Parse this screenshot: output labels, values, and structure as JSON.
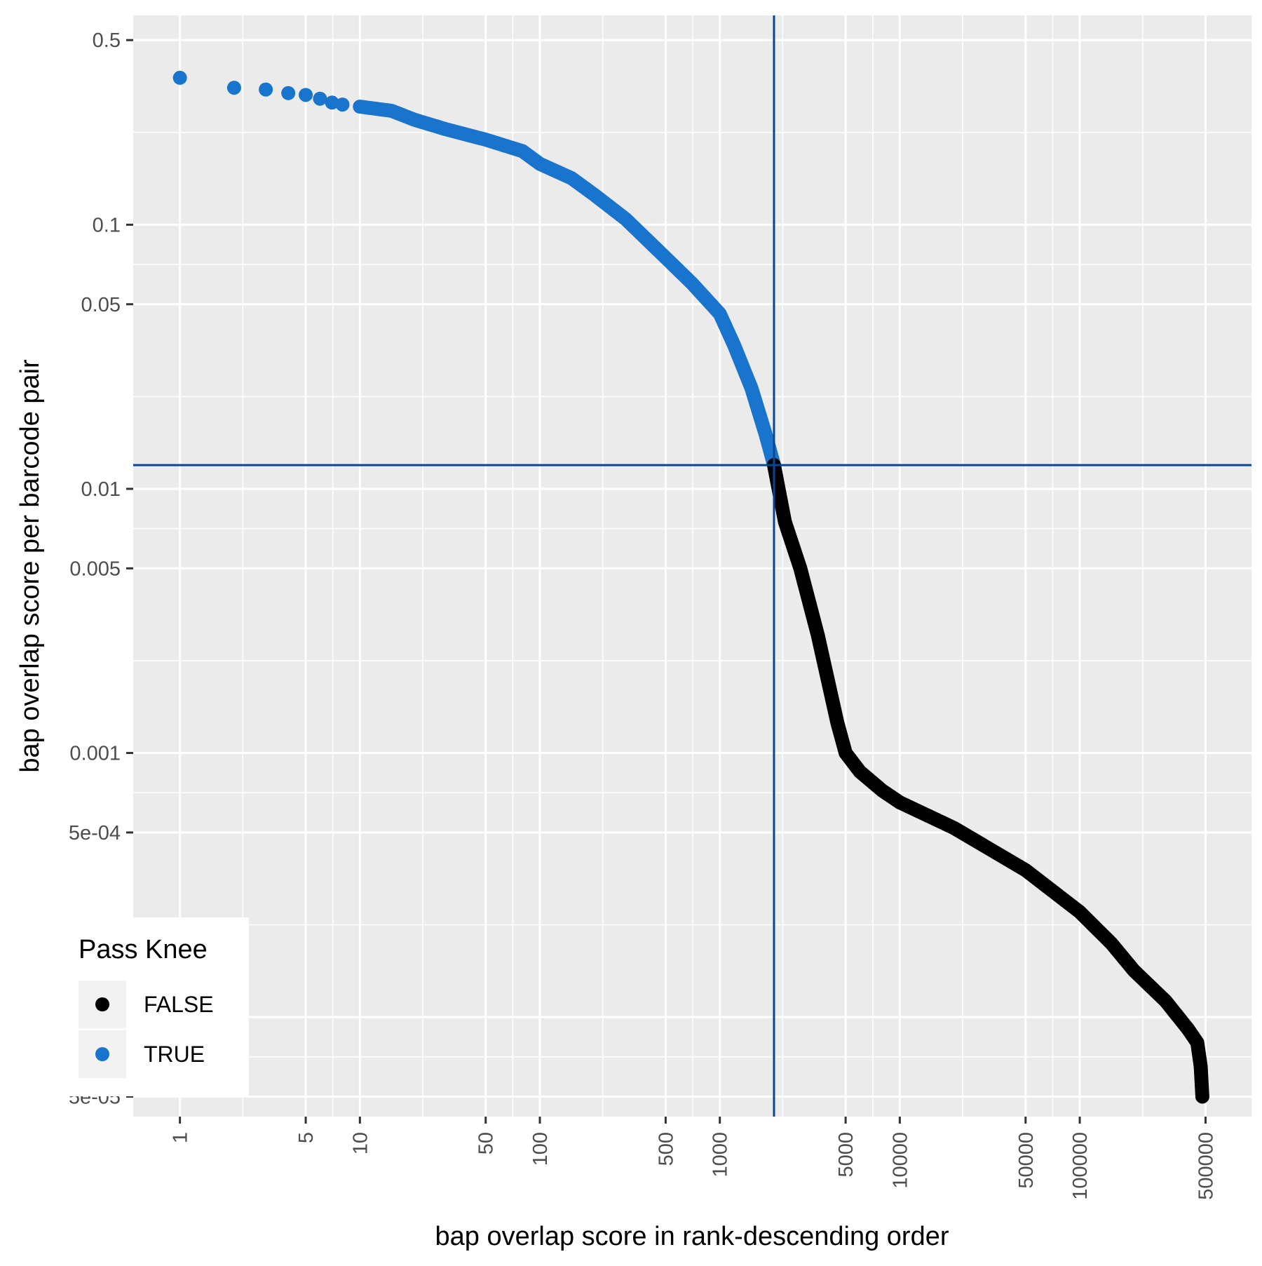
{
  "chart_data": {
    "type": "scatter",
    "xlabel": "bap overlap score in rank-descending order",
    "ylabel": "bap overlap score per barcode pair",
    "x_scale": "log10",
    "y_scale": "log10",
    "xlim": [
      0.55,
      900000
    ],
    "ylim": [
      4.2e-05,
      0.62
    ],
    "grid": true,
    "x_ticks": [
      {
        "value": 1,
        "label": "1"
      },
      {
        "value": 5,
        "label": "5"
      },
      {
        "value": 10,
        "label": "10"
      },
      {
        "value": 50,
        "label": "50"
      },
      {
        "value": 100,
        "label": "100"
      },
      {
        "value": 500,
        "label": "500"
      },
      {
        "value": 1000,
        "label": "1000"
      },
      {
        "value": 5000,
        "label": "5000"
      },
      {
        "value": 10000,
        "label": "10000"
      },
      {
        "value": 50000,
        "label": "50000"
      },
      {
        "value": 100000,
        "label": "100000"
      },
      {
        "value": 500000,
        "label": "500000"
      }
    ],
    "y_ticks": [
      {
        "value": 0.5,
        "label": "0.5"
      },
      {
        "value": 0.1,
        "label": "0.1"
      },
      {
        "value": 0.05,
        "label": "0.05"
      },
      {
        "value": 0.01,
        "label": "0.01"
      },
      {
        "value": 0.005,
        "label": "0.005"
      },
      {
        "value": 0.001,
        "label": "0.001"
      },
      {
        "value": 0.0005,
        "label": "5e-04"
      },
      {
        "value": 0.0001,
        "label": "1e-04"
      },
      {
        "value": 5e-05,
        "label": "5e-05"
      }
    ],
    "reference_lines": {
      "x": 2000,
      "y": 0.0123,
      "color": "#084594"
    },
    "legend": {
      "title": "Pass Knee",
      "placement": "bottom-left",
      "entries": [
        {
          "label": "FALSE",
          "color": "#000000"
        },
        {
          "label": "TRUE",
          "color": "#1874CD"
        }
      ]
    },
    "series": [
      {
        "name": "TRUE",
        "color": "#1874CD",
        "x": [
          1,
          2,
          3,
          4,
          5,
          6,
          7,
          8,
          10,
          15,
          20,
          30,
          50,
          80,
          100,
          150,
          200,
          300,
          500,
          700,
          1000,
          1200,
          1500,
          1800,
          2000
        ],
        "y": [
          0.36,
          0.33,
          0.325,
          0.315,
          0.31,
          0.3,
          0.29,
          0.285,
          0.28,
          0.27,
          0.25,
          0.23,
          0.21,
          0.19,
          0.17,
          0.15,
          0.13,
          0.105,
          0.075,
          0.06,
          0.046,
          0.035,
          0.024,
          0.016,
          0.0123
        ]
      },
      {
        "name": "FALSE",
        "color": "#000000",
        "x": [
          2000,
          2300,
          2800,
          3500,
          4500,
          5000,
          6000,
          8000,
          10000,
          20000,
          50000,
          100000,
          150000,
          200000,
          300000,
          400000,
          450000,
          470000,
          480000
        ],
        "y": [
          0.0123,
          0.0075,
          0.005,
          0.0028,
          0.0013,
          0.001,
          0.00085,
          0.00072,
          0.00065,
          0.00052,
          0.00036,
          0.00025,
          0.00019,
          0.00015,
          0.000115,
          9e-05,
          8e-05,
          6.5e-05,
          5e-05
        ]
      }
    ]
  }
}
